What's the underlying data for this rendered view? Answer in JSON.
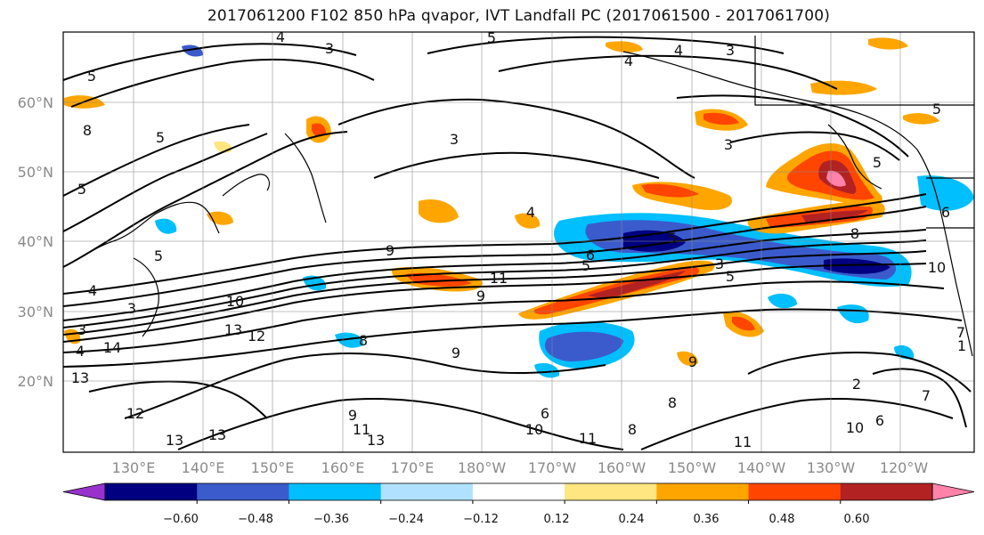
{
  "title": "2017061200 F102 850 hPa qvapor, IVT Landfall PC (2017061500 - 2017061700)",
  "latitude_labels": [
    "60°N",
    "50°N",
    "40°N",
    "30°N",
    "20°N"
  ],
  "longitude_labels": [
    "130°E",
    "140°E",
    "150°E",
    "160°E",
    "170°E",
    "180°W",
    "170°W",
    "160°W",
    "150°W",
    "140°W",
    "130°W",
    "120°W"
  ],
  "colorbar": {
    "colors": [
      "#9932cc",
      "#000080",
      "#3b5bcc",
      "#00bfff",
      "#b0e2ff",
      "#ffffff",
      "#ffe680",
      "#ffa500",
      "#ff4500",
      "#b22222",
      "#ff82ab"
    ],
    "tick_labels": [
      "−0.60",
      "−0.48",
      "−0.36",
      "−0.24",
      "−0.12",
      "0.12",
      "0.24",
      "0.36",
      "0.48",
      "0.60"
    ]
  },
  "contour_labels": [
    "5",
    "4",
    "3",
    "5",
    "4",
    "4",
    "3",
    "5",
    "8",
    "3",
    "3",
    "5",
    "5",
    "5",
    "5",
    "6",
    "4",
    "5",
    "5",
    "9",
    "11",
    "9",
    "5",
    "10",
    "3",
    "13",
    "12",
    "4",
    "14",
    "8",
    "7",
    "3",
    "13",
    "12",
    "13",
    "13",
    "9",
    "11",
    "13",
    "6",
    "8",
    "10",
    "11",
    "9",
    "9",
    "8",
    "10",
    "6",
    "7",
    "2",
    "11",
    "4",
    "6",
    "8",
    "3",
    "10",
    "1"
  ]
}
